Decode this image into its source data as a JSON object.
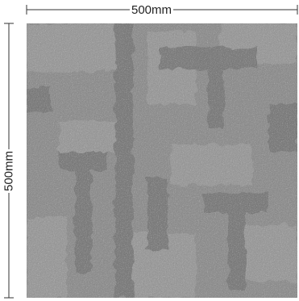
{
  "dimensions": {
    "width_label": "500mm",
    "height_label": "500mm"
  },
  "tile": {
    "base_color": "#8f8f8f",
    "light_color": "#9c9c9c",
    "dark_color": "#7a7a7a"
  }
}
